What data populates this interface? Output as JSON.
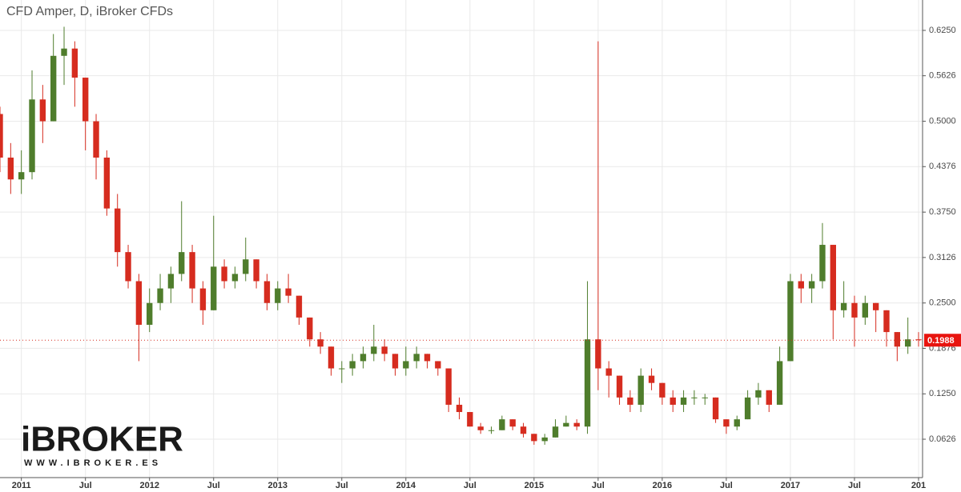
{
  "chart_data": {
    "type": "candlestick",
    "title": "CFD Amper, D, iBroker CFDs",
    "up_color": "#4f7d2c",
    "down_color": "#d62c1f",
    "grid": true,
    "xlim": [
      "2010-11",
      "2018-01"
    ],
    "xticks": [
      {
        "value": "2011-01",
        "label": "2011"
      },
      {
        "value": "2011-07",
        "label": "Jul"
      },
      {
        "value": "2012-01",
        "label": "2012"
      },
      {
        "value": "2012-07",
        "label": "Jul"
      },
      {
        "value": "2013-01",
        "label": "2013"
      },
      {
        "value": "2013-07",
        "label": "Jul"
      },
      {
        "value": "2014-01",
        "label": "2014"
      },
      {
        "value": "2014-07",
        "label": "Jul"
      },
      {
        "value": "2015-01",
        "label": "2015"
      },
      {
        "value": "2015-07",
        "label": "Jul"
      },
      {
        "value": "2016-01",
        "label": "2016"
      },
      {
        "value": "2016-07",
        "label": "Jul"
      },
      {
        "value": "2017-01",
        "label": "2017"
      },
      {
        "value": "2017-07",
        "label": "Jul"
      },
      {
        "value": "2018-01",
        "label": "201"
      }
    ],
    "ylim": [
      0.0098,
      0.6668
    ],
    "yticks": [
      0.0626,
      {
        "value": 0.125,
        "label": "0.1250"
      },
      0.1876,
      {
        "value": 0.25,
        "label": "0.2500"
      },
      0.3126,
      {
        "value": 0.375,
        "label": "0.3750"
      },
      0.4376,
      {
        "value": 0.5,
        "label": "0.5000"
      },
      0.5626,
      {
        "value": 0.625,
        "label": "0.6250"
      }
    ],
    "last_value": 0.1988,
    "x": [
      "2010-11",
      "2010-12",
      "2011-01",
      "2011-02",
      "2011-03",
      "2011-04",
      "2011-05",
      "2011-06",
      "2011-07",
      "2011-08",
      "2011-09",
      "2011-10",
      "2011-11",
      "2011-12",
      "2012-01",
      "2012-02",
      "2012-03",
      "2012-04",
      "2012-05",
      "2012-06",
      "2012-07",
      "2012-08",
      "2012-09",
      "2012-10",
      "2012-11",
      "2012-12",
      "2013-01",
      "2013-02",
      "2013-03",
      "2013-04",
      "2013-05",
      "2013-06",
      "2013-07",
      "2013-08",
      "2013-09",
      "2013-10",
      "2013-11",
      "2013-12",
      "2014-01",
      "2014-02",
      "2014-03",
      "2014-04",
      "2014-05",
      "2014-06",
      "2014-07",
      "2014-08",
      "2014-09",
      "2014-10",
      "2014-11",
      "2014-12",
      "2015-01",
      "2015-02",
      "2015-03",
      "2015-04",
      "2015-05",
      "2015-06",
      "2015-07",
      "2015-08",
      "2015-09",
      "2015-10",
      "2015-11",
      "2015-12",
      "2016-01",
      "2016-02",
      "2016-03",
      "2016-04",
      "2016-05",
      "2016-06",
      "2016-07",
      "2016-08",
      "2016-09",
      "2016-10",
      "2016-11",
      "2016-12",
      "2017-01",
      "2017-02",
      "2017-03",
      "2017-04",
      "2017-05",
      "2017-06",
      "2017-07",
      "2017-08",
      "2017-09",
      "2017-10",
      "2017-11",
      "2017-12",
      "2018-01"
    ],
    "open": [
      0.51,
      0.45,
      0.42,
      0.43,
      0.53,
      0.5,
      0.59,
      0.6,
      0.56,
      0.5,
      0.45,
      0.38,
      0.32,
      0.28,
      0.22,
      0.25,
      0.27,
      0.29,
      0.32,
      0.27,
      0.24,
      0.3,
      0.28,
      0.29,
      0.31,
      0.28,
      0.25,
      0.27,
      0.26,
      0.23,
      0.2,
      0.19,
      0.16,
      0.16,
      0.17,
      0.18,
      0.19,
      0.18,
      0.16,
      0.17,
      0.18,
      0.17,
      0.16,
      0.11,
      0.1,
      0.08,
      0.075,
      0.075,
      0.09,
      0.08,
      0.07,
      0.06,
      0.065,
      0.08,
      0.085,
      0.08,
      0.2,
      0.16,
      0.15,
      0.12,
      0.11,
      0.15,
      0.14,
      0.12,
      0.11,
      0.12,
      0.12,
      0.12,
      0.09,
      0.08,
      0.09,
      0.12,
      0.13,
      0.11,
      0.17,
      0.28,
      0.27,
      0.28,
      0.33,
      0.24,
      0.25,
      0.23,
      0.25,
      0.24,
      0.21,
      0.19,
      0.2
    ],
    "high": [
      0.52,
      0.47,
      0.46,
      0.57,
      0.55,
      0.62,
      0.63,
      0.61,
      0.56,
      0.51,
      0.46,
      0.4,
      0.33,
      0.29,
      0.27,
      0.29,
      0.3,
      0.39,
      0.33,
      0.28,
      0.37,
      0.31,
      0.3,
      0.34,
      0.31,
      0.29,
      0.28,
      0.29,
      0.26,
      0.23,
      0.21,
      0.19,
      0.17,
      0.18,
      0.19,
      0.22,
      0.2,
      0.18,
      0.19,
      0.19,
      0.18,
      0.17,
      0.16,
      0.12,
      0.1,
      0.085,
      0.08,
      0.095,
      0.09,
      0.085,
      0.07,
      0.07,
      0.09,
      0.095,
      0.09,
      0.28,
      0.61,
      0.17,
      0.15,
      0.13,
      0.16,
      0.16,
      0.14,
      0.13,
      0.13,
      0.13,
      0.125,
      0.12,
      0.09,
      0.095,
      0.13,
      0.14,
      0.13,
      0.19,
      0.29,
      0.29,
      0.29,
      0.36,
      0.33,
      0.28,
      0.26,
      0.26,
      0.25,
      0.24,
      0.21,
      0.23,
      0.21
    ],
    "low": [
      0.43,
      0.4,
      0.4,
      0.42,
      0.47,
      0.5,
      0.55,
      0.52,
      0.46,
      0.42,
      0.37,
      0.3,
      0.27,
      0.17,
      0.21,
      0.24,
      0.25,
      0.28,
      0.25,
      0.22,
      0.24,
      0.27,
      0.27,
      0.28,
      0.27,
      0.24,
      0.24,
      0.25,
      0.22,
      0.19,
      0.18,
      0.15,
      0.14,
      0.15,
      0.16,
      0.17,
      0.17,
      0.15,
      0.15,
      0.16,
      0.16,
      0.15,
      0.1,
      0.09,
      0.08,
      0.07,
      0.07,
      0.075,
      0.075,
      0.065,
      0.055,
      0.055,
      0.065,
      0.08,
      0.075,
      0.07,
      0.13,
      0.12,
      0.11,
      0.1,
      0.1,
      0.13,
      0.11,
      0.1,
      0.1,
      0.11,
      0.11,
      0.085,
      0.07,
      0.075,
      0.09,
      0.11,
      0.1,
      0.11,
      0.17,
      0.25,
      0.25,
      0.27,
      0.2,
      0.23,
      0.19,
      0.22,
      0.21,
      0.19,
      0.17,
      0.18,
      0.19
    ],
    "close": [
      0.45,
      0.42,
      0.43,
      0.53,
      0.5,
      0.59,
      0.6,
      0.56,
      0.5,
      0.45,
      0.38,
      0.32,
      0.28,
      0.22,
      0.25,
      0.27,
      0.29,
      0.32,
      0.27,
      0.24,
      0.3,
      0.28,
      0.29,
      0.31,
      0.28,
      0.25,
      0.27,
      0.26,
      0.23,
      0.2,
      0.19,
      0.16,
      0.16,
      0.17,
      0.18,
      0.19,
      0.18,
      0.16,
      0.17,
      0.18,
      0.17,
      0.16,
      0.11,
      0.1,
      0.08,
      0.075,
      0.075,
      0.09,
      0.08,
      0.07,
      0.06,
      0.065,
      0.08,
      0.085,
      0.08,
      0.2,
      0.16,
      0.15,
      0.12,
      0.11,
      0.15,
      0.14,
      0.12,
      0.11,
      0.12,
      0.12,
      0.12,
      0.09,
      0.08,
      0.09,
      0.12,
      0.13,
      0.11,
      0.17,
      0.28,
      0.27,
      0.28,
      0.33,
      0.24,
      0.25,
      0.23,
      0.25,
      0.24,
      0.21,
      0.19,
      0.2,
      0.1988
    ]
  },
  "watermark": {
    "brand": "iBROKER",
    "url": "WWW.IBROKER.ES"
  }
}
